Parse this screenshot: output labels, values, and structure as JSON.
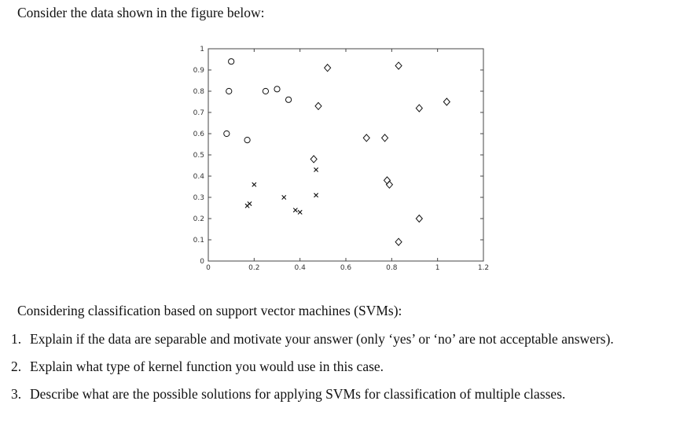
{
  "document": {
    "intro": "Consider the data shown in the figure below:",
    "lead": "Considering classification based on support vector machines (SVMs):",
    "questions": [
      {
        "number": "1.",
        "text": "Explain if the data are separable and motivate your answer (only ‘yes’ or ‘no’ are not acceptable answers)."
      },
      {
        "number": "2.",
        "text": "Explain what type of kernel function you would use in this case."
      },
      {
        "number": "3.",
        "text": "Describe what are the possible solutions for applying SVMs for classification of multiple classes."
      }
    ]
  },
  "chart_data": {
    "type": "scatter",
    "xlim": [
      0,
      1.2
    ],
    "ylim": [
      0,
      1
    ],
    "xticks": [
      "0",
      "0.2",
      "0.4",
      "0.6",
      "0.8",
      "1",
      "1.2"
    ],
    "yticks": [
      "0",
      "0.1",
      "0.2",
      "0.3",
      "0.4",
      "0.5",
      "0.6",
      "0.7",
      "0.8",
      "0.9",
      "1"
    ],
    "grid": false,
    "legend": "none",
    "series": [
      {
        "marker": "circle",
        "points": [
          [
            0.1,
            0.94
          ],
          [
            0.09,
            0.8
          ],
          [
            0.08,
            0.6
          ],
          [
            0.17,
            0.57
          ],
          [
            0.25,
            0.8
          ],
          [
            0.3,
            0.81
          ],
          [
            0.35,
            0.76
          ]
        ]
      },
      {
        "marker": "diamond",
        "points": [
          [
            0.52,
            0.91
          ],
          [
            0.83,
            0.92
          ],
          [
            0.48,
            0.73
          ],
          [
            0.92,
            0.72
          ],
          [
            1.04,
            0.75
          ],
          [
            0.46,
            0.48
          ],
          [
            0.69,
            0.58
          ],
          [
            0.77,
            0.58
          ],
          [
            0.78,
            0.38
          ],
          [
            0.79,
            0.36
          ],
          [
            0.92,
            0.2
          ],
          [
            0.83,
            0.09
          ]
        ]
      },
      {
        "marker": "x",
        "points": [
          [
            0.2,
            0.36
          ],
          [
            0.17,
            0.26
          ],
          [
            0.18,
            0.27
          ],
          [
            0.33,
            0.3
          ],
          [
            0.38,
            0.24
          ],
          [
            0.4,
            0.23
          ],
          [
            0.47,
            0.43
          ],
          [
            0.47,
            0.31
          ]
        ]
      }
    ]
  }
}
